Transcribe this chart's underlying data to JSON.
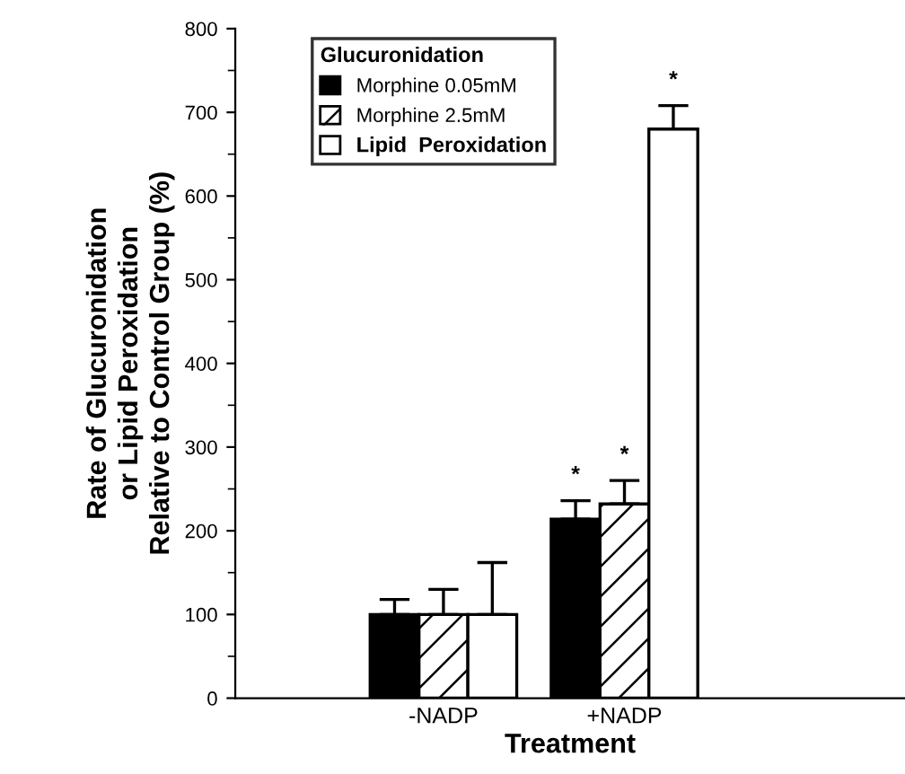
{
  "chart_data": {
    "type": "bar",
    "xlabel": "Treatment",
    "ylabel": "Rate of Glucuronidation\nor Lipid Peroxidation\nRelative to Control Group (%)",
    "legend_title": "Glucuronidation",
    "categories": [
      "-NADP",
      "+NADP"
    ],
    "series": [
      {
        "name": "Morphine 0.05mM",
        "color": "#000000",
        "values": [
          100,
          214
        ],
        "errors": [
          [
            100,
            118
          ],
          [
            214,
            236
          ]
        ],
        "value_labels": [
          null,
          "*"
        ]
      },
      {
        "name": "Morphine 2.5mM",
        "color": "#ffffff",
        "values": [
          100,
          232
        ],
        "errors": [
          [
            100,
            130
          ],
          [
            232,
            260
          ]
        ],
        "value_labels": [
          null,
          "*"
        ]
      },
      {
        "name": "Lipid  Peroxidation",
        "color": "#ffffff",
        "values": [
          100,
          680
        ],
        "errors": [
          [
            100,
            162
          ],
          [
            680,
            708
          ]
        ],
        "value_labels": [
          null,
          "*"
        ]
      }
    ],
    "ylim": [
      0,
      800
    ],
    "yticks": [
      0,
      100,
      200,
      300,
      400,
      500,
      600,
      700,
      800
    ],
    "legend": "top left",
    "grid": false
  }
}
